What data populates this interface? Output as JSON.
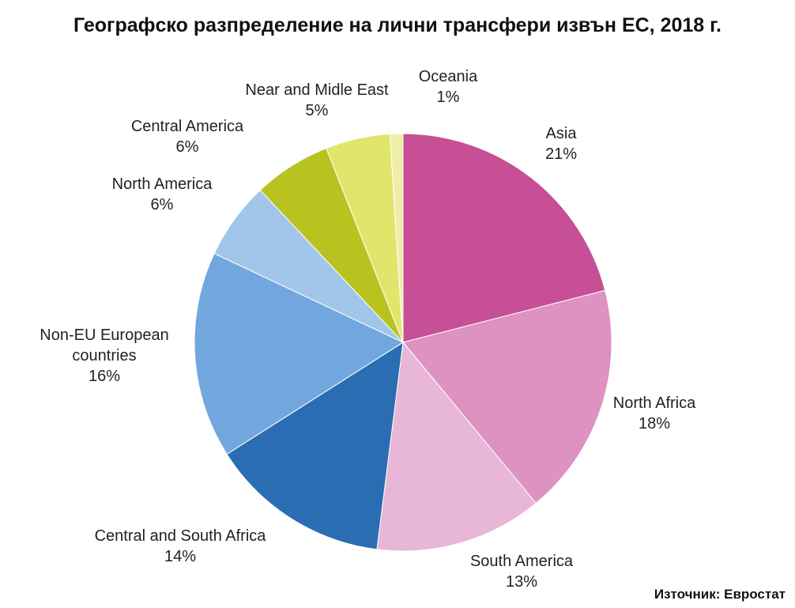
{
  "title": "Географско разпределение на лични трансфери извън ЕС, 2018 г.",
  "source": "Източник: Евростат",
  "chart_data": {
    "type": "pie",
    "title": "Географско разпределение на лични трансфери извън ЕС, 2018 г.",
    "start": "12 o'clock",
    "direction": "clockwise",
    "slices": [
      {
        "label": [
          "Asia"
        ],
        "value": 21,
        "value_label": "21%",
        "color": "#c74f96"
      },
      {
        "label": [
          "North Africa"
        ],
        "value": 18,
        "value_label": "18%",
        "color": "#dd92c1"
      },
      {
        "label": [
          "South America"
        ],
        "value": 13,
        "value_label": "13%",
        "color": "#e8b6d6"
      },
      {
        "label": [
          "Central and South Africa"
        ],
        "value": 14,
        "value_label": "14%",
        "color": "#2a6db3"
      },
      {
        "label": [
          "Non-EU European",
          "countries"
        ],
        "value": 16,
        "value_label": "16%",
        "color": "#72a7de"
      },
      {
        "label": [
          "North America"
        ],
        "value": 6,
        "value_label": "6%",
        "color": "#a2c6ea"
      },
      {
        "label": [
          "Central America"
        ],
        "value": 6,
        "value_label": "6%",
        "color": "#b9c31f"
      },
      {
        "label": [
          "Near and Midle East"
        ],
        "value": 5,
        "value_label": "5%",
        "color": "#e2e56b"
      },
      {
        "label": [
          "Oceania"
        ],
        "value": 1,
        "value_label": "1%",
        "color": "#eeeea8"
      }
    ]
  }
}
